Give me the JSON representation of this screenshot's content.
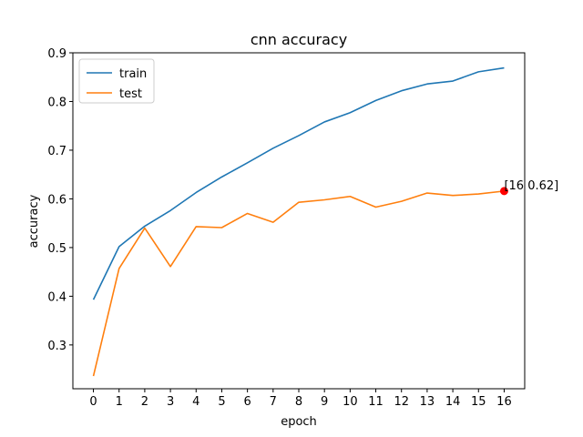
{
  "chart_data": {
    "type": "line",
    "title": "cnn accuracy",
    "xlabel": "epoch",
    "ylabel": "accuracy",
    "x": [
      0,
      1,
      2,
      3,
      4,
      5,
      6,
      7,
      8,
      9,
      10,
      11,
      12,
      13,
      14,
      15,
      16
    ],
    "xticks": [
      "0",
      "1",
      "2",
      "3",
      "4",
      "5",
      "6",
      "7",
      "8",
      "9",
      "10",
      "11",
      "12",
      "13",
      "14",
      "15",
      "16"
    ],
    "yticks": [
      "0.3",
      "0.4",
      "0.5",
      "0.6",
      "0.7",
      "0.8",
      "0.9"
    ],
    "ytick_values": [
      0.3,
      0.4,
      0.5,
      0.6,
      0.7,
      0.8,
      0.9
    ],
    "xlim": [
      -0.8,
      16.8
    ],
    "ylim": [
      0.21,
      0.9
    ],
    "grid": false,
    "legend_position": "top-left",
    "series": [
      {
        "name": "train",
        "color": "#1f77b4",
        "values": [
          0.393,
          0.502,
          0.544,
          0.576,
          0.613,
          0.645,
          0.674,
          0.704,
          0.73,
          0.758,
          0.777,
          0.802,
          0.822,
          0.836,
          0.842,
          0.861,
          0.869
        ]
      },
      {
        "name": "test",
        "color": "#ff7f0e",
        "values": [
          0.236,
          0.457,
          0.54,
          0.461,
          0.543,
          0.541,
          0.57,
          0.552,
          0.593,
          0.598,
          0.605,
          0.583,
          0.595,
          0.612,
          0.607,
          0.61,
          0.616
        ]
      }
    ],
    "annotation": {
      "x": 16,
      "y": 0.616,
      "text": "[16 0.62]",
      "color": "#ff0000"
    }
  }
}
